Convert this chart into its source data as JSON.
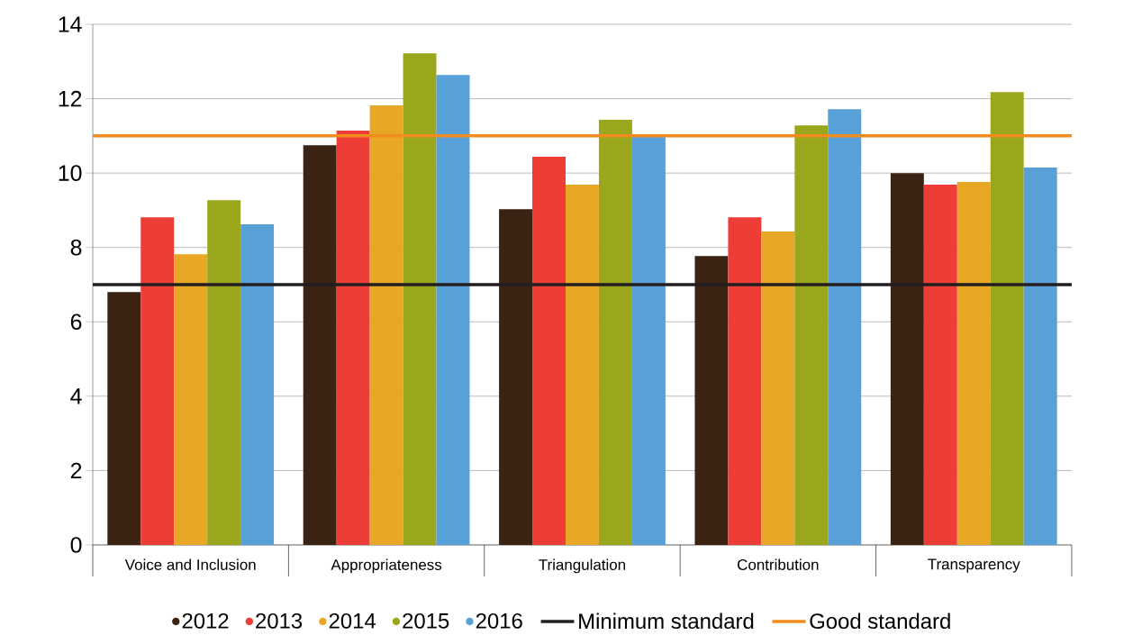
{
  "chart_data": {
    "type": "bar",
    "categories": [
      "Voice and Inclusion",
      "Appropriateness",
      "Triangulation",
      "Contribution",
      "Transparency"
    ],
    "series": [
      {
        "name": "2012",
        "color": "#3b2314",
        "values": [
          6.8,
          10.75,
          9.03,
          7.77,
          10.0
        ]
      },
      {
        "name": "2013",
        "color": "#ee3d36",
        "values": [
          8.81,
          11.14,
          10.44,
          8.81,
          9.69
        ]
      },
      {
        "name": "2014",
        "color": "#e8a825",
        "values": [
          7.82,
          11.82,
          9.69,
          8.43,
          9.76
        ]
      },
      {
        "name": "2015",
        "color": "#9aa61b",
        "values": [
          9.27,
          13.22,
          11.43,
          11.28,
          12.18
        ]
      },
      {
        "name": "2016",
        "color": "#58a0d8",
        "values": [
          8.62,
          12.64,
          10.99,
          11.72,
          10.15
        ]
      }
    ],
    "ylim": [
      0,
      14
    ],
    "yticks": [
      0,
      2,
      4,
      6,
      8,
      10,
      12,
      14
    ],
    "grid": "y",
    "legend": "bottom",
    "ref_lines": [
      {
        "axis": "y",
        "value": 7,
        "label": "Minimum standard",
        "color": "#231f20"
      },
      {
        "axis": "y",
        "value": 11,
        "label": "Good standard",
        "color": "#f28c1e"
      }
    ]
  }
}
